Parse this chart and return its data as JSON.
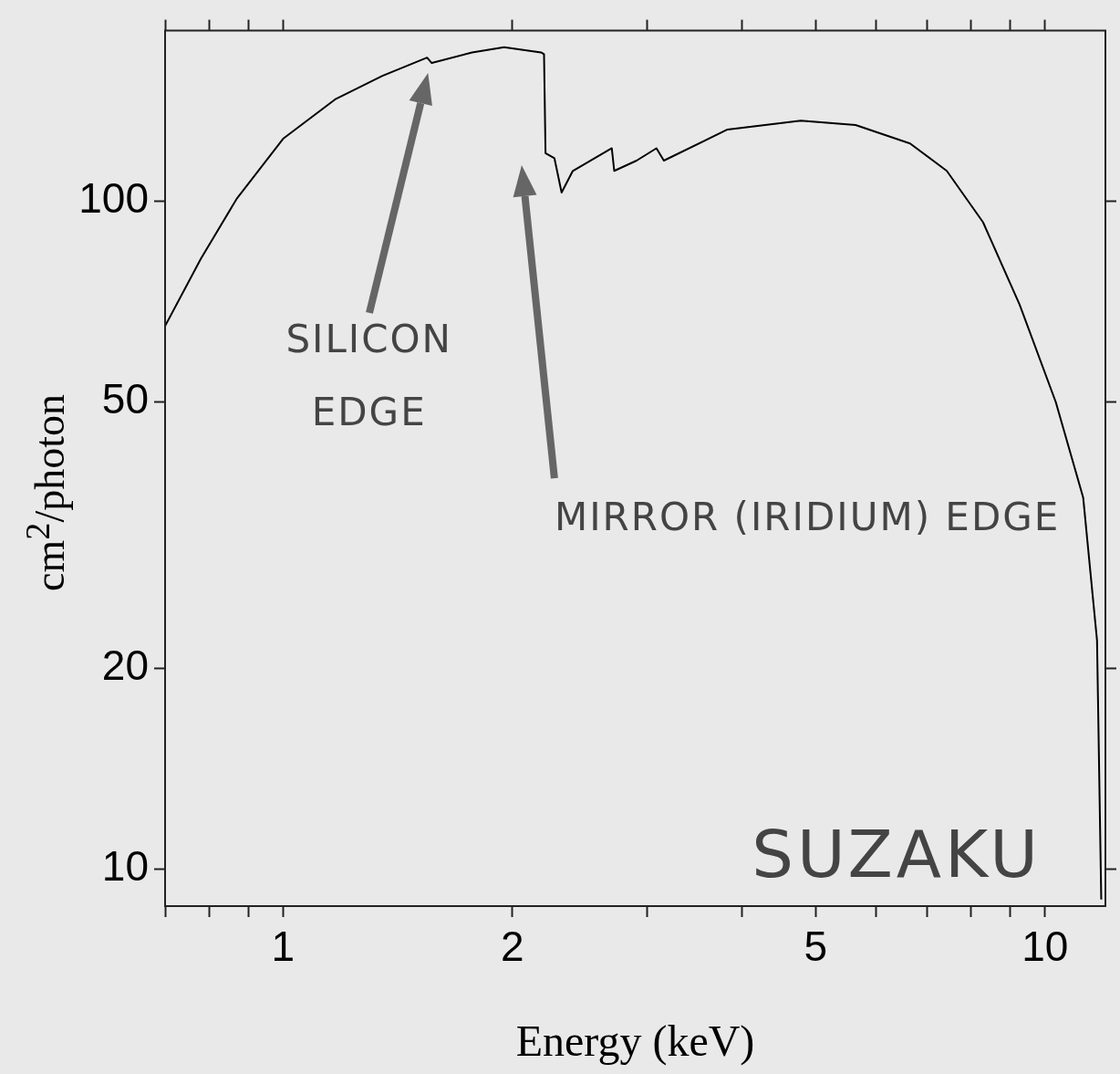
{
  "chart_data": {
    "type": "line",
    "xlabel": "Energy (keV)",
    "ylabel": "cm$^{2}$/photon",
    "log": "xy",
    "grid": false,
    "legend": false,
    "marker": "none",
    "line_style": "solid",
    "xlim": [
      0.7,
      12
    ],
    "ylim": [
      8.8,
      180
    ],
    "xticks": [
      {
        "value": 0.7,
        "label": null
      },
      {
        "value": 0.8,
        "label": null
      },
      {
        "value": 0.9,
        "label": null
      },
      1,
      2,
      {
        "value": 3,
        "label": null
      },
      {
        "value": 4,
        "label": null
      },
      5,
      {
        "value": 6,
        "label": null
      },
      {
        "value": 7,
        "label": null
      },
      {
        "value": 8,
        "label": null
      },
      {
        "value": 9,
        "label": null
      },
      10
    ],
    "yticks": [
      10,
      20,
      50,
      100
    ],
    "x": [
      0.7,
      0.78,
      0.87,
      1.0,
      1.17,
      1.35,
      1.545,
      1.567,
      1.77,
      1.95,
      2.18,
      2.2,
      2.21,
      2.27,
      2.32,
      2.4,
      2.7,
      2.72,
      2.91,
      3.09,
      3.16,
      3.83,
      4.78,
      5.64,
      6.65,
      7.43,
      8.29,
      9.26,
      10.33,
      11.22,
      11.7,
      11.85
    ],
    "series": [
      {
        "color": "#000000",
        "values": [
          65,
          82,
          101,
          124,
          142,
          154,
          164,
          161,
          167,
          170,
          167,
          166,
          118,
          116,
          103,
          111,
          120,
          111,
          115,
          120,
          115,
          128,
          132,
          130,
          122,
          111,
          93,
          70,
          50,
          36,
          22,
          9
        ]
      }
    ],
    "annotations": [
      "SILICON EDGE",
      "MIRROR (IRIDIUM) EDGE",
      "SUZAKU"
    ]
  }
}
